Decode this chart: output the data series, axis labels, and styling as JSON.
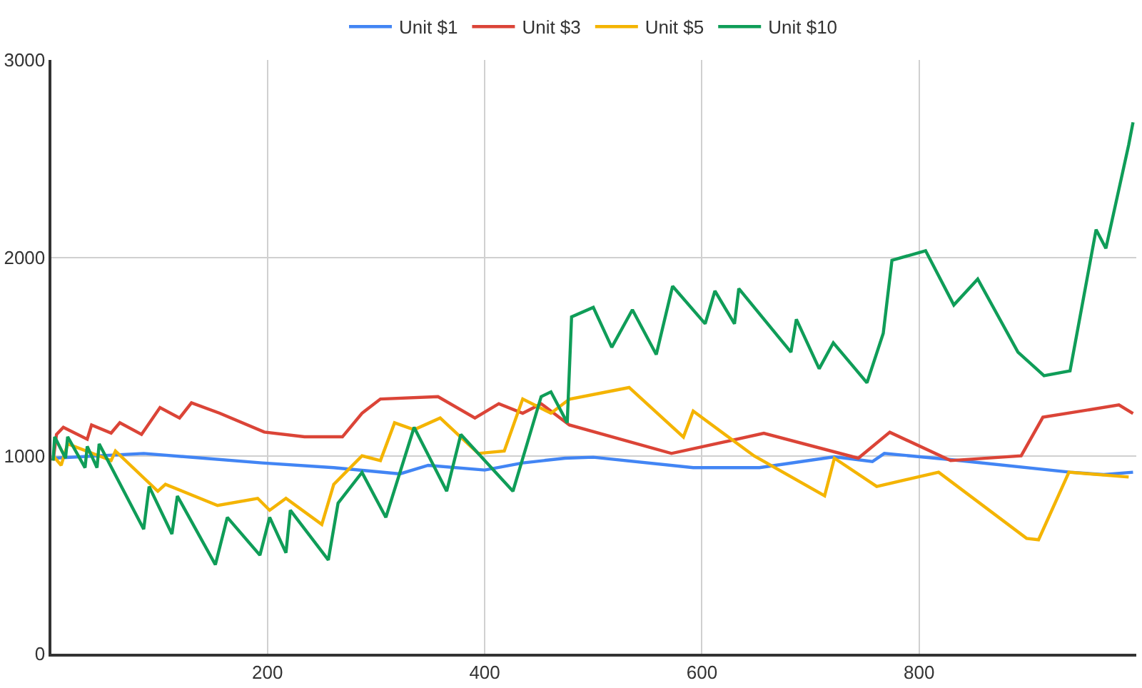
{
  "chart_data": {
    "type": "line",
    "xlim": [
      1,
      1000
    ],
    "xticks": [
      200,
      400,
      600,
      800
    ],
    "ylim": [
      0,
      3000
    ],
    "yticks": [
      0,
      1000,
      2000,
      3000
    ],
    "grid": true,
    "legend": "top",
    "marker": "none",
    "line_style": "solid",
    "series": [
      {
        "name": "Unit $1",
        "color": "#4285f4",
        "x": [
          2.6,
          86,
          195,
          261,
          322,
          348,
          400,
          435,
          474,
          500,
          592,
          653,
          722,
          757,
          768,
          829,
          939,
          970,
          997
        ],
        "values": [
          988,
          1012,
          964,
          940,
          909,
          952,
          928,
          964,
          988,
          993,
          940,
          940,
          995,
          971,
          1012,
          981,
          917,
          905,
          917
        ]
      },
      {
        "name": "Unit $3",
        "color": "#db4437",
        "x": [
          2.6,
          5.7,
          12,
          34,
          38,
          56,
          64,
          84,
          101,
          119,
          130,
          156,
          197,
          234,
          269,
          287,
          304,
          357,
          391,
          413,
          435,
          452,
          478,
          572,
          657,
          744,
          773,
          829,
          894,
          914,
          984,
          997
        ],
        "values": [
          976,
          1108,
          1144,
          1084,
          1156,
          1115,
          1167,
          1108,
          1244,
          1191,
          1268,
          1215,
          1120,
          1096,
          1096,
          1215,
          1287,
          1299,
          1191,
          1263,
          1215,
          1263,
          1156,
          1012,
          1114,
          988,
          1119,
          976,
          1000,
          1195,
          1257,
          1214
        ]
      },
      {
        "name": "Unit $5",
        "color": "#f4b400",
        "x": [
          2.6,
          10,
          16,
          56,
          60,
          99,
          106,
          154,
          191,
          202,
          217,
          250,
          261,
          287,
          304,
          317,
          335,
          359,
          394,
          418,
          435,
          461,
          478,
          533,
          583,
          592,
          648,
          713,
          722,
          761,
          818,
          899,
          910,
          938,
          993
        ],
        "values": [
          1000,
          952,
          1060,
          976,
          1024,
          821,
          856,
          749,
          785,
          725,
          785,
          653,
          856,
          1000,
          976,
          1167,
          1132,
          1191,
          1012,
          1024,
          1287,
          1215,
          1286,
          1345,
          1095,
          1226,
          1000,
          798,
          988,
          845,
          917,
          583,
          576,
          917,
          893
        ]
      },
      {
        "name": "Unit $10",
        "color": "#0f9d58",
        "x": [
          2.6,
          4,
          14,
          16,
          32,
          34,
          43,
          45,
          86,
          91,
          112,
          117,
          152,
          163,
          193,
          202,
          217,
          221,
          256,
          265,
          287,
          309,
          335,
          365,
          378,
          426,
          452,
          461,
          476,
          480,
          500,
          517,
          536,
          558,
          573,
          603,
          612,
          630,
          634,
          682,
          687,
          708,
          721,
          752,
          767,
          775,
          806,
          832,
          854,
          891,
          915,
          939,
          963,
          972,
          993,
          997
        ],
        "values": [
          976,
          1096,
          988,
          1096,
          940,
          1048,
          940,
          1060,
          629,
          845,
          605,
          797,
          450,
          689,
          498,
          689,
          510,
          725,
          474,
          761,
          916,
          689,
          1144,
          821,
          1108,
          821,
          1299,
          1323,
          1167,
          1702,
          1750,
          1548,
          1738,
          1512,
          1857,
          1667,
          1833,
          1667,
          1845,
          1524,
          1690,
          1440,
          1571,
          1369,
          1619,
          1988,
          2036,
          1762,
          1893,
          1524,
          1405,
          1429,
          2143,
          2048,
          2571,
          2685
        ]
      }
    ]
  }
}
